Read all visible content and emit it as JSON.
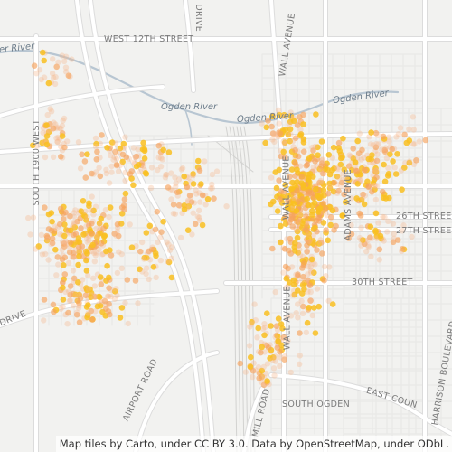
{
  "labels": {
    "w12th": "WEST 12TH STREET",
    "river_nw": "er River",
    "ogden1": "Ogden River",
    "ogden2": "Ogden River",
    "ogden3": "Ogden River",
    "s1900w": "SOUTH 1900 WEST",
    "drive_top": "DRIVE",
    "wall_top": "WALL AVENUE",
    "wall_mid": "WALL AVENUE",
    "wall_low": "WALL AVENUE",
    "adams": "ADAMS AVENUE",
    "s26th": "26TH STREE",
    "s27th": "27TH STREE",
    "s30th": "30TH STREET",
    "drive_left": "DRIVE",
    "airport": "AIRPORT ROAD",
    "mill": "MILL ROAD",
    "south_ogden": "SOUTH OGDEN",
    "east_country": "EAST COUN",
    "harrison": "HARRISON BOULEVARD"
  },
  "attribution": "Map tiles by Carto, under CC BY 3.0. Data by OpenStreetMap, under ODbL.",
  "colors": {
    "background": "#f2f2f0",
    "street": "#ffffff",
    "street_casing": "#dcdcdc",
    "river": "#b8c6d2",
    "dot_light": "#f7b78c",
    "dot_medium": "#f6a35d",
    "dot_strong": "#f9c021"
  }
}
